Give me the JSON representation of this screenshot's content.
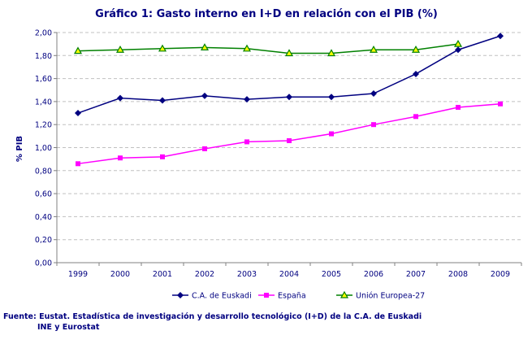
{
  "chart_data": {
    "type": "line",
    "title": "Gráfico 1: Gasto interno en I+D en relación con el PIB (%)",
    "ylabel": "% PIB",
    "xlabel": "",
    "categories": [
      "1999",
      "2000",
      "2001",
      "2002",
      "2003",
      "2004",
      "2005",
      "2006",
      "2007",
      "2008",
      "2009"
    ],
    "ylim": [
      0,
      2
    ],
    "yticks": [
      "0,00",
      "0,20",
      "0,40",
      "0,60",
      "0,80",
      "1,00",
      "1,20",
      "1,40",
      "1,60",
      "1,80",
      "2,00"
    ],
    "grid": true,
    "legend_placement": "bottom",
    "series": [
      {
        "name": "C.A. de Euskadi",
        "color": "#000080",
        "marker": "diamond",
        "values": [
          1.3,
          1.43,
          1.41,
          1.45,
          1.42,
          1.44,
          1.44,
          1.47,
          1.64,
          1.85,
          1.97
        ]
      },
      {
        "name": "España",
        "color": "#FF00FF",
        "marker": "square",
        "values": [
          0.86,
          0.91,
          0.92,
          0.99,
          1.05,
          1.06,
          1.12,
          1.2,
          1.27,
          1.35,
          1.38
        ]
      },
      {
        "name": "Unión Europea-27",
        "color": "#008000",
        "marker": "triangle",
        "values": [
          1.84,
          1.85,
          1.86,
          1.87,
          1.86,
          1.82,
          1.82,
          1.85,
          1.85,
          1.9,
          null
        ]
      }
    ]
  },
  "source": {
    "line1": "Fuente: Eustat. Estadística de investigación y desarrollo tecnológico (I+D) de la C.A. de Euskadi",
    "line2": "INE y Eurostat"
  }
}
